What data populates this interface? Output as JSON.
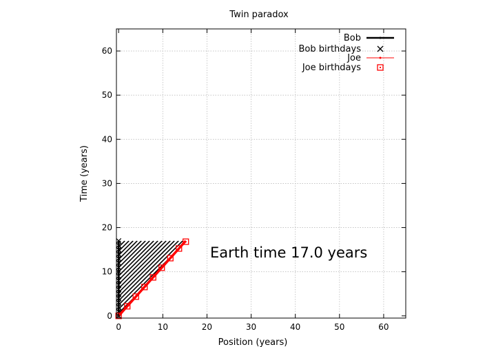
{
  "chart_data": {
    "type": "line",
    "title": "Twin paradox",
    "xlabel": "Position (years)",
    "ylabel": "Time (years)",
    "xlim": [
      -0.5,
      65
    ],
    "ylim": [
      -0.5,
      65
    ],
    "x_ticks": [
      0,
      10,
      20,
      30,
      40,
      50,
      60
    ],
    "y_ticks": [
      0,
      10,
      20,
      30,
      40,
      50,
      60
    ],
    "grid": true,
    "legend_position": "top-right",
    "annotation": "Earth time 17.0 years",
    "colors": {
      "bob": "#000000",
      "joe": "#ff0000",
      "grid": "#bbbbbb"
    },
    "series": [
      {
        "name": "Bob",
        "style": "line",
        "x": [
          0,
          0
        ],
        "y": [
          0,
          17
        ]
      },
      {
        "name": "Bob birthdays",
        "style": "x-marker",
        "x": [
          0,
          0,
          0,
          0,
          0,
          0,
          0,
          0,
          0,
          0,
          0,
          0,
          0,
          0,
          0,
          0,
          0,
          0
        ],
        "y": [
          0,
          1,
          2,
          3,
          4,
          5,
          6,
          7,
          8,
          9,
          10,
          11,
          12,
          13,
          14,
          15,
          16,
          17
        ]
      },
      {
        "name": "Joe",
        "style": "line-dot",
        "x": [
          0,
          15.2
        ],
        "y": [
          0,
          17
        ]
      },
      {
        "name": "Joe birthdays",
        "style": "square-marker",
        "x": [
          0,
          1.95,
          3.9,
          5.85,
          7.8,
          9.75,
          11.7,
          13.65,
          15.2
        ],
        "y": [
          0,
          2.18,
          4.36,
          6.54,
          8.72,
          10.9,
          13.08,
          15.26,
          16.8
        ]
      }
    ],
    "light_cone_hatch": {
      "x_from": 0,
      "x_to": 15.2,
      "y_top": 17
    }
  }
}
